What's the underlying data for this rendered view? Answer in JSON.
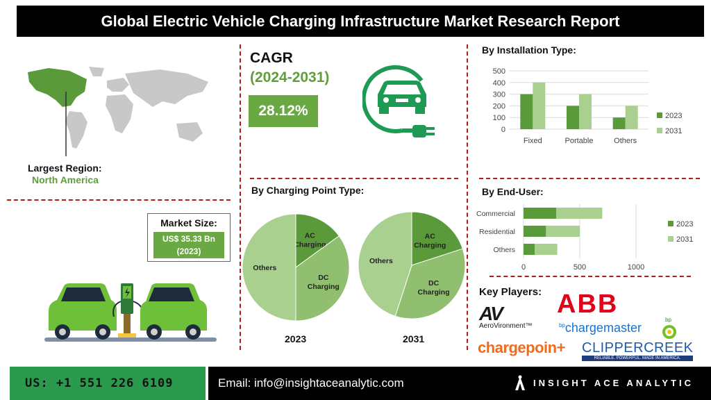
{
  "header": {
    "title": "Global Electric Vehicle Charging Infrastructure Market Research Report"
  },
  "region": {
    "label": "Largest Region:",
    "value": "North America"
  },
  "cagr": {
    "label": "CAGR",
    "period": "(2024-2031)",
    "value": "28.12%"
  },
  "market_size": {
    "label": "Market Size:",
    "value": "US$ 35.33 Bn",
    "year": "(2023)"
  },
  "charging_point": {
    "title": "By Charging Point Type:",
    "year_a": "2023",
    "year_b": "2031"
  },
  "installation": {
    "title": "By Installation Type:"
  },
  "end_user": {
    "title": "By End-User:"
  },
  "key_players": {
    "title": "Key Players:",
    "logos": [
      "AV",
      "AeroVironment™",
      "ABB",
      "bp",
      "chargemaster",
      "bp",
      "chargepoin+",
      "CLIPPERCREEK",
      "RELIABLE. POWERFUL. MADE IN AMERICA."
    ]
  },
  "footer": {
    "phone": "US: +1 551 226 6109",
    "email": "Email: info@insightaceanalytic.com",
    "brand": "INSIGHT ACE ANALYTIC"
  },
  "colors": {
    "dark_green": "#5b9a3b",
    "light_green": "#a9d08e",
    "pie_mid": "#8fbf6f",
    "accent_red": "#b01c1c",
    "icon_green": "#1f9a55"
  },
  "chart_data": [
    {
      "type": "bar",
      "title": "By Installation Type:",
      "categories": [
        "Fixed",
        "Portable",
        "Others"
      ],
      "series": [
        {
          "name": "2023",
          "values": [
            300,
            200,
            100
          ]
        },
        {
          "name": "2031",
          "values": [
            400,
            300,
            200
          ]
        }
      ],
      "ylim": [
        0,
        500
      ],
      "yticks": [
        "0",
        "100",
        "200",
        "300",
        "400",
        "500"
      ],
      "grid": true,
      "legend": "right"
    },
    {
      "type": "bar",
      "orientation": "horizontal",
      "stacked": true,
      "title": "By End-User:",
      "categories": [
        "Commercial",
        "Residential",
        "Others"
      ],
      "series": [
        {
          "name": "2023",
          "values": [
            290,
            200,
            100
          ]
        },
        {
          "name": "2031",
          "values": [
            410,
            300,
            200
          ]
        }
      ],
      "xlim": [
        0,
        1000
      ],
      "xticks": [
        "0",
        "500",
        "1000"
      ],
      "grid": true,
      "legend": "right"
    },
    {
      "type": "pie",
      "title": "2023",
      "slices": [
        {
          "label": "AC Charging",
          "value": 15
        },
        {
          "label": "DC Charging",
          "value": 35
        },
        {
          "label": "Others",
          "value": 50
        }
      ]
    },
    {
      "type": "pie",
      "title": "2031",
      "slices": [
        {
          "label": "AC Charging",
          "value": 20
        },
        {
          "label": "DC Charging",
          "value": 35
        },
        {
          "label": "Others",
          "value": 45
        }
      ]
    }
  ]
}
